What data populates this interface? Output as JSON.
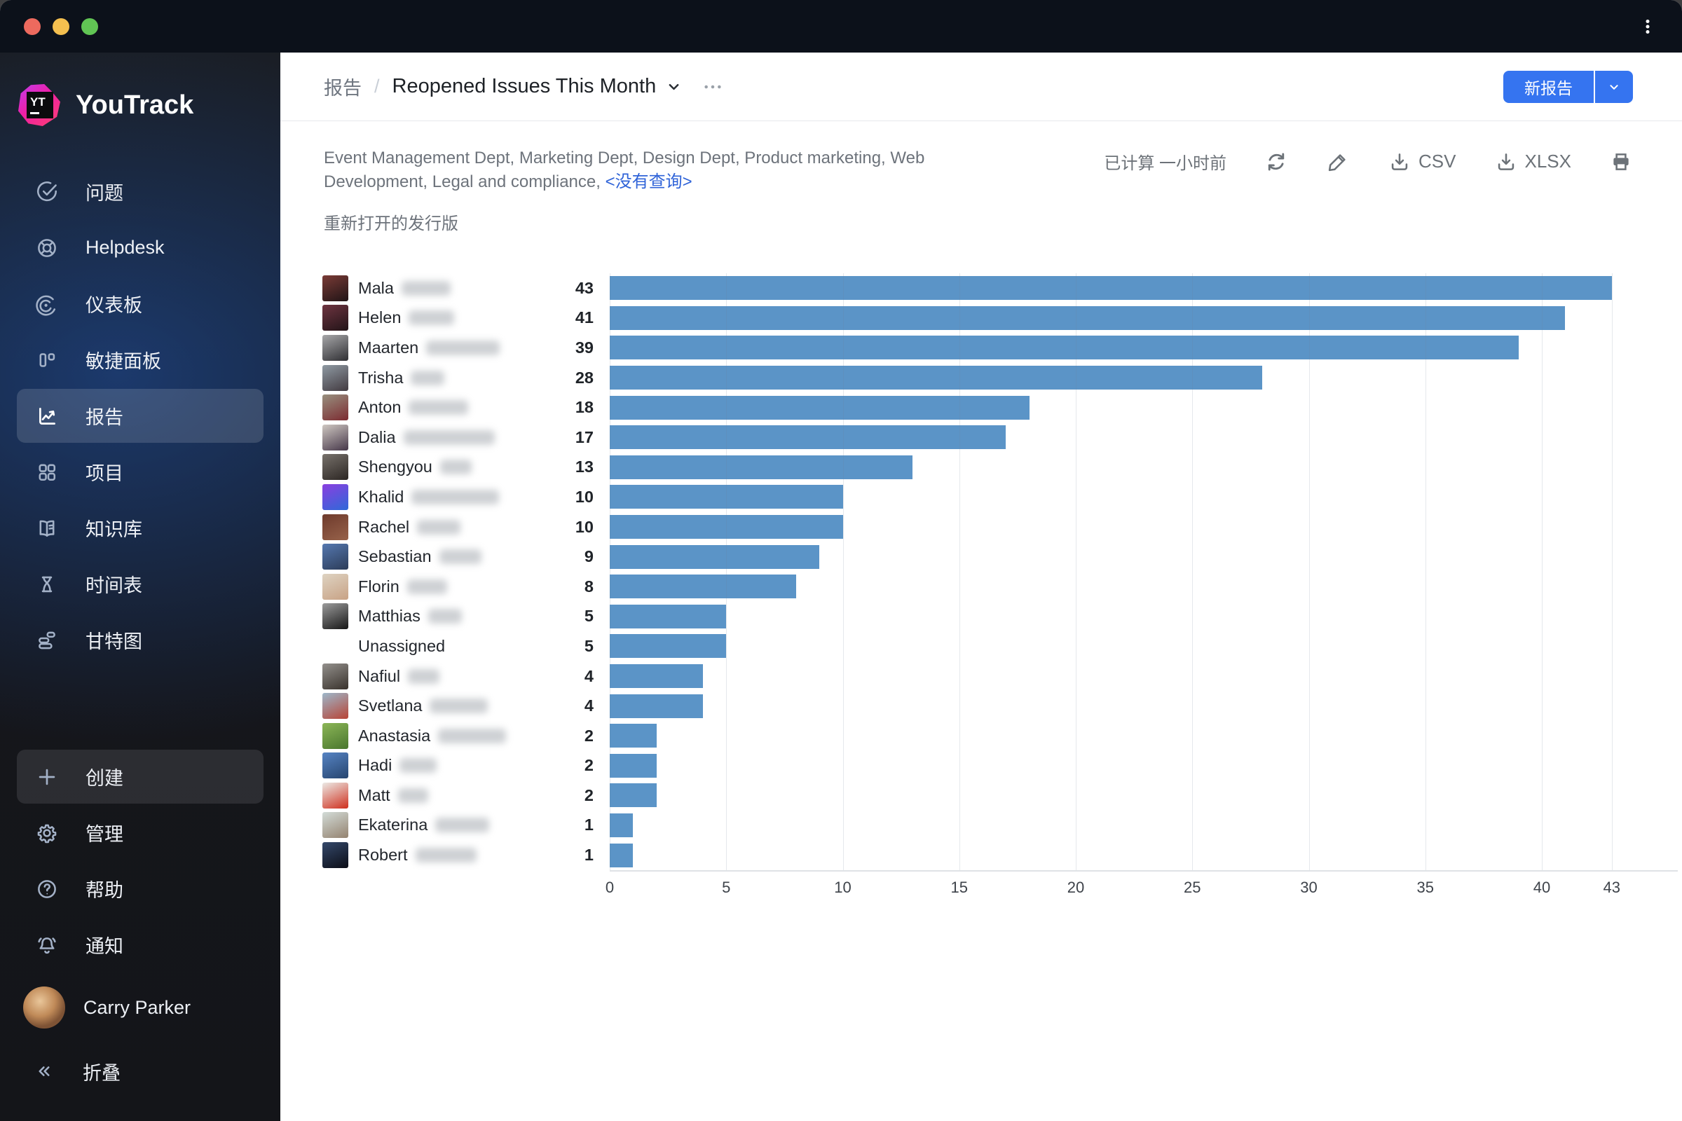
{
  "brand": {
    "name": "YouTrack",
    "logo_letters": "YT"
  },
  "sidebar": {
    "items": [
      {
        "id": "issues",
        "label": "问题",
        "icon": "issues-check-icon"
      },
      {
        "id": "helpdesk",
        "label": "Helpdesk",
        "icon": "helpdesk-lifebuoy-icon"
      },
      {
        "id": "dashboards",
        "label": "仪表板",
        "icon": "dashboards-icon"
      },
      {
        "id": "agile-boards",
        "label": "敏捷面板",
        "icon": "agile-boards-icon"
      },
      {
        "id": "reports",
        "label": "报告",
        "icon": "reports-chart-icon",
        "selected": true
      },
      {
        "id": "projects",
        "label": "项目",
        "icon": "projects-grid-icon"
      },
      {
        "id": "knowledge-base",
        "label": "知识库",
        "icon": "knowledge-base-book-icon"
      },
      {
        "id": "timesheets",
        "label": "时间表",
        "icon": "timesheets-hourglass-icon"
      },
      {
        "id": "gantt",
        "label": "甘特图",
        "icon": "gantt-chart-icon"
      }
    ],
    "actions": [
      {
        "id": "create",
        "label": "创建",
        "icon": "plus-icon",
        "highlighted": true
      },
      {
        "id": "administration",
        "label": "管理",
        "icon": "gear-icon"
      },
      {
        "id": "help",
        "label": "帮助",
        "icon": "question-icon"
      },
      {
        "id": "notifications",
        "label": "通知",
        "icon": "bell-icon"
      }
    ],
    "user": {
      "name": "Carry Parker"
    },
    "collapse_label": "折叠"
  },
  "header": {
    "breadcrumb_root": "报告",
    "breadcrumb_separator": "/",
    "title": "Reopened Issues This Month",
    "new_report_label": "新报告"
  },
  "toolbar": {
    "calculated_status": "已计算 一小时前",
    "csv_label": "CSV",
    "xlsx_label": "XLSX"
  },
  "filters": {
    "projects_line": "Event Management Dept, Marketing Dept, Design Dept, Product marketing, Web Development, Legal and compliance,",
    "query_link": "<没有查询>",
    "report_subtitle": "重新打开的发行版"
  },
  "colors": {
    "accent_blue": "#3574f0",
    "bar_blue": "#5b94c7",
    "link_blue": "#2f63d8",
    "sidebar_glow": "#204e9e",
    "titlebar_bg": "#0c111a"
  },
  "chart_data": {
    "type": "bar",
    "orientation": "horizontal",
    "title": "Reopened Issues This Month",
    "xlabel": "",
    "ylabel": "",
    "xlim": [
      0,
      43
    ],
    "ticks": [
      0,
      5,
      10,
      15,
      20,
      25,
      30,
      35,
      40,
      43
    ],
    "grid": true,
    "legend": false,
    "bar_color": "#5b94c7",
    "categories": [
      "Mala",
      "Helen",
      "Maarten",
      "Trisha",
      "Anton",
      "Dalia",
      "Shengyou",
      "Khalid",
      "Rachel",
      "Sebastian",
      "Florin",
      "Matthias",
      "Unassigned",
      "Nafiul",
      "Svetlana",
      "Anastasia",
      "Hadi",
      "Matt",
      "Ekaterina",
      "Robert"
    ],
    "values": [
      43,
      41,
      39,
      28,
      18,
      17,
      13,
      10,
      10,
      9,
      8,
      5,
      5,
      4,
      4,
      2,
      2,
      2,
      1,
      1
    ],
    "rows": [
      {
        "name": "Mala",
        "value": 43,
        "redact_width": 70,
        "avatar": [
          "#7a3b36",
          "#201416"
        ]
      },
      {
        "name": "Helen",
        "value": 41,
        "redact_width": 65,
        "avatar": [
          "#6e3440",
          "#221418"
        ]
      },
      {
        "name": "Maarten",
        "value": 39,
        "redact_width": 105,
        "avatar": [
          "#a7a7a9",
          "#2f2f33"
        ]
      },
      {
        "name": "Trisha",
        "value": 28,
        "redact_width": 48,
        "avatar": [
          "#8f9aa3",
          "#423a40"
        ]
      },
      {
        "name": "Anton",
        "value": 18,
        "redact_width": 85,
        "avatar": [
          "#98907f",
          "#7c2b31"
        ]
      },
      {
        "name": "Dalia",
        "value": 17,
        "redact_width": 130,
        "avatar": [
          "#cfc8c2",
          "#463749"
        ]
      },
      {
        "name": "Shengyou",
        "value": 13,
        "redact_width": 45,
        "avatar": [
          "#77716b",
          "#2c2623"
        ]
      },
      {
        "name": "Khalid",
        "value": 10,
        "redact_width": 125,
        "avatar": [
          "#8a3fe0",
          "#2f69d8"
        ]
      },
      {
        "name": "Rachel",
        "value": 10,
        "redact_width": 62,
        "avatar": [
          "#6e3a2c",
          "#97624a"
        ]
      },
      {
        "name": "Sebastian",
        "value": 9,
        "redact_width": 60,
        "avatar": [
          "#5578b0",
          "#2c3c58"
        ]
      },
      {
        "name": "Florin",
        "value": 8,
        "redact_width": 57,
        "avatar": [
          "#ded3c2",
          "#c8a285"
        ]
      },
      {
        "name": "Matthias",
        "value": 5,
        "redact_width": 48,
        "avatar": [
          "#9c9c9c",
          "#161616"
        ]
      },
      {
        "name": "Unassigned",
        "value": 5,
        "redact_width": 0,
        "avatar": null
      },
      {
        "name": "Nafiul",
        "value": 4,
        "redact_width": 45,
        "avatar": [
          "#93908c",
          "#39322c"
        ]
      },
      {
        "name": "Svetlana",
        "value": 4,
        "redact_width": 83,
        "avatar": [
          "#9db8cb",
          "#b84436"
        ]
      },
      {
        "name": "Anastasia",
        "value": 2,
        "redact_width": 97,
        "avatar": [
          "#8cb657",
          "#49762e"
        ]
      },
      {
        "name": "Hadi",
        "value": 2,
        "redact_width": 53,
        "avatar": [
          "#5684c4",
          "#27456f"
        ]
      },
      {
        "name": "Matt",
        "value": 2,
        "redact_width": 43,
        "avatar": [
          "#eceae6",
          "#cf2f1d"
        ]
      },
      {
        "name": "Ekaterina",
        "value": 1,
        "redact_width": 77,
        "avatar": [
          "#d3dcd8",
          "#94826f"
        ]
      },
      {
        "name": "Robert",
        "value": 1,
        "redact_width": 87,
        "avatar": [
          "#35496b",
          "#0b0d16"
        ]
      }
    ]
  }
}
